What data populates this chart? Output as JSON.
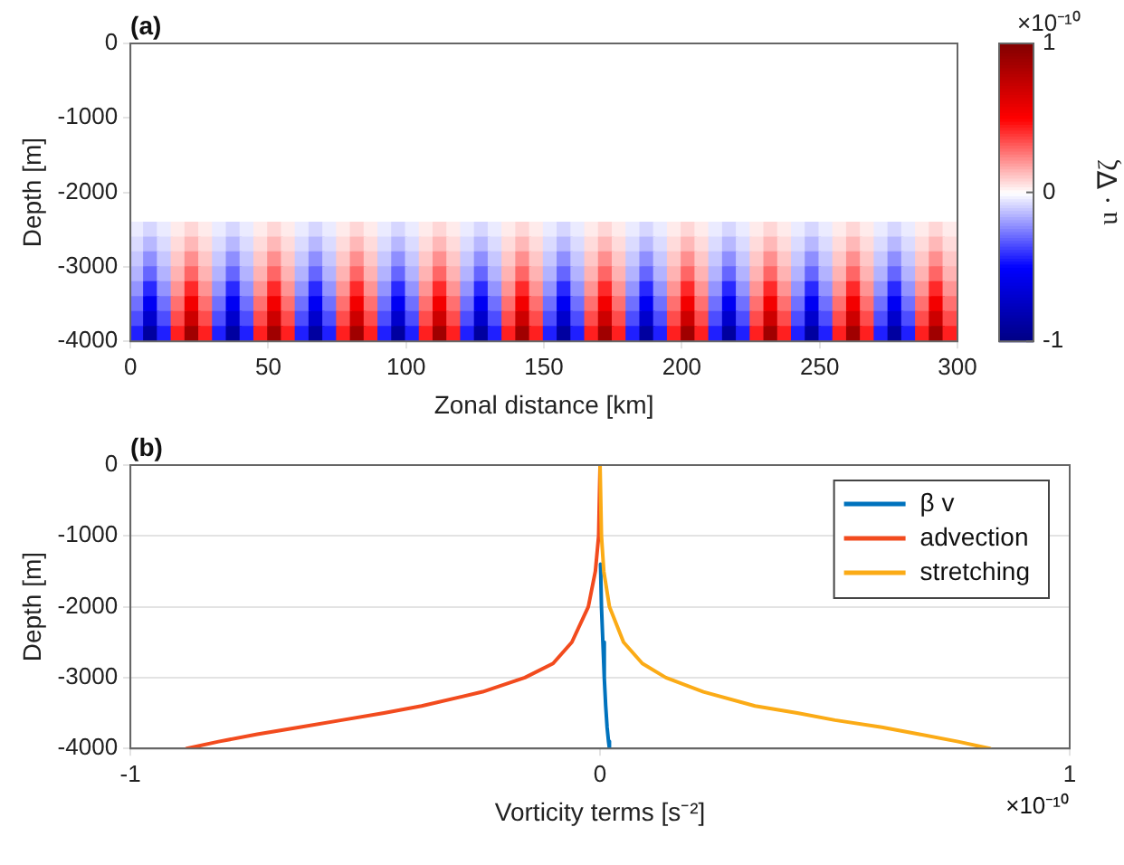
{
  "chart_data": [
    {
      "type": "scatter",
      "title": "(a)",
      "xlabel": "Zonal distance [km]",
      "ylabel": "Depth [m]",
      "clabel": "u · ∇ζ",
      "annotations": [
        "×10⁻¹⁰"
      ],
      "marker": "square",
      "xlim": [
        0,
        300
      ],
      "xticks": [
        0,
        50,
        100,
        150,
        200,
        250,
        300
      ],
      "ylim": [
        -4000,
        0
      ],
      "yticks": [
        -4000,
        -3000,
        -2000,
        -1000,
        0
      ],
      "clim": [
        -1,
        1
      ],
      "cticks": [
        -1,
        0,
        1
      ],
      "x": [
        2.5,
        7.5,
        12.5,
        17.5,
        22.5,
        27.5,
        32.5,
        37.5,
        42.5,
        47.5,
        52.5,
        57.5,
        62.5,
        67.5,
        72.5,
        77.5,
        82.5,
        87.5,
        92.5,
        97.5,
        102.5,
        107.5,
        112.5,
        117.5,
        122.5,
        127.5,
        132.5,
        137.5,
        142.5,
        147.5,
        152.5,
        157.5,
        162.5,
        167.5,
        172.5,
        177.5,
        182.5,
        187.5,
        192.5,
        197.5,
        202.5,
        207.5,
        212.5,
        217.5,
        222.5,
        227.5,
        232.5,
        237.5,
        242.5,
        247.5,
        252.5,
        257.5,
        262.5,
        267.5,
        272.5,
        277.5,
        282.5,
        287.5,
        292.5,
        297.5,
        2.5,
        7.5,
        12.5,
        17.5,
        22.5,
        27.5,
        32.5,
        37.5,
        42.5,
        47.5,
        52.5,
        57.5,
        62.5,
        67.5,
        72.5,
        77.5,
        82.5,
        87.5,
        92.5,
        97.5,
        102.5,
        107.5,
        112.5,
        117.5,
        122.5,
        127.5,
        132.5,
        137.5,
        142.5,
        147.5,
        152.5,
        157.5,
        162.5,
        167.5,
        172.5,
        177.5,
        182.5,
        187.5,
        192.5,
        197.5,
        202.5,
        207.5,
        212.5,
        217.5,
        222.5,
        227.5,
        232.5,
        237.5,
        242.5,
        247.5,
        252.5,
        257.5,
        262.5,
        267.5,
        272.5,
        277.5,
        282.5,
        287.5,
        292.5,
        297.5,
        2.5,
        7.5,
        12.5,
        17.5,
        22.5,
        27.5,
        32.5,
        37.5,
        42.5,
        47.5,
        52.5,
        57.5,
        62.5,
        67.5,
        72.5,
        77.5,
        82.5,
        87.5,
        92.5,
        97.5,
        102.5,
        107.5,
        112.5,
        117.5,
        122.5,
        127.5,
        132.5,
        137.5,
        142.5,
        147.5,
        152.5,
        157.5,
        162.5,
        167.5,
        172.5,
        177.5,
        182.5,
        187.5,
        192.5,
        197.5,
        202.5,
        207.5,
        212.5,
        217.5,
        222.5,
        227.5,
        232.5,
        237.5,
        242.5,
        247.5,
        252.5,
        257.5,
        262.5,
        267.5,
        272.5,
        277.5,
        282.5,
        287.5,
        292.5,
        297.5,
        2.5,
        7.5,
        12.5,
        17.5,
        22.5,
        27.5,
        32.5,
        37.5,
        42.5,
        47.5,
        52.5,
        57.5,
        62.5,
        67.5,
        72.5,
        77.5,
        82.5,
        87.5,
        92.5,
        97.5,
        102.5,
        107.5,
        112.5,
        117.5,
        122.5,
        127.5,
        132.5,
        137.5,
        142.5,
        147.5,
        152.5,
        157.5,
        162.5,
        167.5,
        172.5,
        177.5,
        182.5,
        187.5,
        192.5,
        197.5,
        202.5,
        207.5,
        212.5,
        217.5,
        222.5,
        227.5,
        232.5,
        237.5,
        242.5,
        247.5,
        252.5,
        257.5,
        262.5,
        267.5,
        272.5,
        277.5,
        282.5,
        287.5,
        292.5,
        297.5,
        2.5,
        7.5,
        12.5,
        17.5,
        22.5,
        27.5,
        32.5,
        37.5,
        42.5,
        47.5,
        52.5,
        57.5,
        62.5,
        67.5,
        72.5,
        77.5,
        82.5,
        87.5,
        92.5,
        97.5,
        102.5,
        107.5,
        112.5,
        117.5,
        122.5,
        127.5,
        132.5,
        137.5,
        142.5,
        147.5,
        152.5,
        157.5,
        162.5,
        167.5,
        172.5,
        177.5,
        182.5,
        187.5,
        192.5,
        197.5,
        202.5,
        207.5,
        212.5,
        217.5,
        222.5,
        227.5,
        232.5,
        237.5,
        242.5,
        247.5,
        252.5,
        257.5,
        262.5,
        267.5,
        272.5,
        277.5,
        282.5,
        287.5,
        292.5,
        297.5,
        2.5,
        7.5,
        12.5,
        17.5,
        22.5,
        27.5,
        32.5,
        37.5,
        42.5,
        47.5,
        52.5,
        57.5,
        62.5,
        67.5,
        72.5,
        77.5,
        82.5,
        87.5,
        92.5,
        97.5,
        102.5,
        107.5,
        112.5,
        117.5,
        122.5,
        127.5,
        132.5,
        137.5,
        142.5,
        147.5,
        152.5,
        157.5,
        162.5,
        167.5,
        172.5,
        177.5,
        182.5,
        187.5,
        192.5,
        197.5,
        202.5,
        207.5,
        212.5,
        217.5,
        222.5,
        227.5,
        232.5,
        237.5,
        242.5,
        247.5,
        252.5,
        257.5,
        262.5,
        267.5,
        272.5,
        277.5,
        282.5,
        287.5,
        292.5,
        297.5,
        2.5,
        7.5,
        12.5,
        17.5,
        22.5,
        27.5,
        32.5,
        37.5,
        42.5,
        47.5,
        52.5,
        57.5,
        62.5,
        67.5,
        72.5,
        77.5,
        82.5,
        87.5,
        92.5,
        97.5,
        102.5,
        107.5,
        112.5,
        117.5,
        122.5,
        127.5,
        132.5,
        137.5,
        142.5,
        147.5,
        152.5,
        157.5,
        162.5,
        167.5,
        172.5,
        177.5,
        182.5,
        187.5,
        192.5,
        197.5,
        202.5,
        207.5,
        212.5,
        217.5,
        222.5,
        227.5,
        232.5,
        237.5,
        242.5,
        247.5,
        252.5,
        257.5,
        262.5,
        267.5,
        272.5,
        277.5,
        282.5,
        287.5,
        292.5,
        297.5,
        2.5,
        7.5,
        12.5,
        17.5,
        22.5,
        27.5,
        32.5,
        37.5,
        42.5,
        47.5,
        52.5,
        57.5,
        62.5,
        67.5,
        72.5,
        77.5,
        82.5,
        87.5,
        92.5,
        97.5,
        102.5,
        107.5,
        112.5,
        117.5,
        122.5,
        127.5,
        132.5,
        137.5,
        142.5,
        147.5,
        152.5,
        157.5,
        162.5,
        167.5,
        172.5,
        177.5,
        182.5,
        187.5,
        192.5,
        197.5,
        202.5,
        207.5,
        212.5,
        217.5,
        222.5,
        227.5,
        232.5,
        237.5,
        242.5,
        247.5,
        252.5,
        257.5,
        262.5,
        267.5,
        272.5,
        277.5,
        282.5,
        287.5,
        292.5,
        297.5
      ],
      "values": [
        -2500,
        -2500,
        -2500,
        -2500,
        -2500,
        -2500,
        -2500,
        -2500,
        -2500,
        -2500,
        -2500,
        -2500,
        -2500,
        -2500,
        -2500,
        -2500,
        -2500,
        -2500,
        -2500,
        -2500,
        -2500,
        -2500,
        -2500,
        -2500,
        -2500,
        -2500,
        -2500,
        -2500,
        -2500,
        -2500,
        -2500,
        -2500,
        -2500,
        -2500,
        -2500,
        -2500,
        -2500,
        -2500,
        -2500,
        -2500,
        -2500,
        -2500,
        -2500,
        -2500,
        -2500,
        -2500,
        -2500,
        -2500,
        -2500,
        -2500,
        -2500,
        -2500,
        -2500,
        -2500,
        -2500,
        -2500,
        -2500,
        -2500,
        -2500,
        -2500,
        -2700,
        -2700,
        -2700,
        -2700,
        -2700,
        -2700,
        -2700,
        -2700,
        -2700,
        -2700,
        -2700,
        -2700,
        -2700,
        -2700,
        -2700,
        -2700,
        -2700,
        -2700,
        -2700,
        -2700,
        -2700,
        -2700,
        -2700,
        -2700,
        -2700,
        -2700,
        -2700,
        -2700,
        -2700,
        -2700,
        -2700,
        -2700,
        -2700,
        -2700,
        -2700,
        -2700,
        -2700,
        -2700,
        -2700,
        -2700,
        -2700,
        -2700,
        -2700,
        -2700,
        -2700,
        -2700,
        -2700,
        -2700,
        -2700,
        -2700,
        -2700,
        -2700,
        -2700,
        -2700,
        -2700,
        -2700,
        -2700,
        -2700,
        -2700,
        -2700,
        -2900,
        -2900,
        -2900,
        -2900,
        -2900,
        -2900,
        -2900,
        -2900,
        -2900,
        -2900,
        -2900,
        -2900,
        -2900,
        -2900,
        -2900,
        -2900,
        -2900,
        -2900,
        -2900,
        -2900,
        -2900,
        -2900,
        -2900,
        -2900,
        -2900,
        -2900,
        -2900,
        -2900,
        -2900,
        -2900,
        -2900,
        -2900,
        -2900,
        -2900,
        -2900,
        -2900,
        -2900,
        -2900,
        -2900,
        -2900,
        -2900,
        -2900,
        -2900,
        -2900,
        -2900,
        -2900,
        -2900,
        -2900,
        -2900,
        -2900,
        -2900,
        -2900,
        -2900,
        -2900,
        -2900,
        -2900,
        -2900,
        -2900,
        -2900,
        -2900,
        -3100,
        -3100,
        -3100,
        -3100,
        -3100,
        -3100,
        -3100,
        -3100,
        -3100,
        -3100,
        -3100,
        -3100,
        -3100,
        -3100,
        -3100,
        -3100,
        -3100,
        -3100,
        -3100,
        -3100,
        -3100,
        -3100,
        -3100,
        -3100,
        -3100,
        -3100,
        -3100,
        -3100,
        -3100,
        -3100,
        -3100,
        -3100,
        -3100,
        -3100,
        -3100,
        -3100,
        -3100,
        -3100,
        -3100,
        -3100,
        -3100,
        -3100,
        -3100,
        -3100,
        -3100,
        -3100,
        -3100,
        -3100,
        -3100,
        -3100,
        -3100,
        -3100,
        -3100,
        -3100,
        -3100,
        -3100,
        -3100,
        -3100,
        -3100,
        -3100,
        -3300,
        -3300,
        -3300,
        -3300,
        -3300,
        -3300,
        -3300,
        -3300,
        -3300,
        -3300,
        -3300,
        -3300,
        -3300,
        -3300,
        -3300,
        -3300,
        -3300,
        -3300,
        -3300,
        -3300,
        -3300,
        -3300,
        -3300,
        -3300,
        -3300,
        -3300,
        -3300,
        -3300,
        -3300,
        -3300,
        -3300,
        -3300,
        -3300,
        -3300,
        -3300,
        -3300,
        -3300,
        -3300,
        -3300,
        -3300,
        -3300,
        -3300,
        -3300,
        -3300,
        -3300,
        -3300,
        -3300,
        -3300,
        -3300,
        -3300,
        -3300,
        -3300,
        -3300,
        -3300,
        -3300,
        -3300,
        -3300,
        -3300,
        -3300,
        -3300,
        -3500,
        -3500,
        -3500,
        -3500,
        -3500,
        -3500,
        -3500,
        -3500,
        -3500,
        -3500,
        -3500,
        -3500,
        -3500,
        -3500,
        -3500,
        -3500,
        -3500,
        -3500,
        -3500,
        -3500,
        -3500,
        -3500,
        -3500,
        -3500,
        -3500,
        -3500,
        -3500,
        -3500,
        -3500,
        -3500,
        -3500,
        -3500,
        -3500,
        -3500,
        -3500,
        -3500,
        -3500,
        -3500,
        -3500,
        -3500,
        -3500,
        -3500,
        -3500,
        -3500,
        -3500,
        -3500,
        -3500,
        -3500,
        -3500,
        -3500,
        -3500,
        -3500,
        -3500,
        -3500,
        -3500,
        -3500,
        -3500,
        -3500,
        -3500,
        -3500,
        -3700,
        -3700,
        -3700,
        -3700,
        -3700,
        -3700,
        -3700,
        -3700,
        -3700,
        -3700,
        -3700,
        -3700,
        -3700,
        -3700,
        -3700,
        -3700,
        -3700,
        -3700,
        -3700,
        -3700,
        -3700,
        -3700,
        -3700,
        -3700,
        -3700,
        -3700,
        -3700,
        -3700,
        -3700,
        -3700,
        -3700,
        -3700,
        -3700,
        -3700,
        -3700,
        -3700,
        -3700,
        -3700,
        -3700,
        -3700,
        -3700,
        -3700,
        -3700,
        -3700,
        -3700,
        -3700,
        -3700,
        -3700,
        -3700,
        -3700,
        -3700,
        -3700,
        -3700,
        -3700,
        -3700,
        -3700,
        -3700,
        -3700,
        -3700,
        -3700,
        -3900,
        -3900,
        -3900,
        -3900,
        -3900,
        -3900,
        -3900,
        -3900,
        -3900,
        -3900,
        -3900,
        -3900,
        -3900,
        -3900,
        -3900,
        -3900,
        -3900,
        -3900,
        -3900,
        -3900,
        -3900,
        -3900,
        -3900,
        -3900,
        -3900,
        -3900,
        -3900,
        -3900,
        -3900,
        -3900,
        -3900,
        -3900,
        -3900,
        -3900,
        -3900,
        -3900,
        -3900,
        -3900,
        -3900,
        -3900,
        -3900,
        -3900,
        -3900,
        -3900,
        -3900,
        -3900,
        -3900,
        -3900,
        -3900,
        -3900,
        -3900,
        -3900,
        -3900,
        -3900,
        -3900,
        -3900,
        -3900,
        -3900,
        -3900,
        -3900
      ],
      "cvalues": [
        -0.04,
        -0.08,
        -0.04,
        0.04,
        0.08,
        0.04,
        -0.04,
        -0.08,
        -0.04,
        0.04,
        0.08,
        0.04,
        -0.04,
        -0.08,
        -0.04,
        0.04,
        0.08,
        0.04,
        -0.04,
        -0.08,
        -0.04,
        0.04,
        0.08,
        0.04,
        -0.04,
        -0.08,
        -0.04,
        0.04,
        0.08,
        0.04,
        -0.04,
        -0.08,
        -0.04,
        0.04,
        0.08,
        0.04,
        -0.04,
        -0.08,
        -0.04,
        0.04,
        0.08,
        0.04,
        -0.04,
        -0.08,
        -0.04,
        0.04,
        0.08,
        0.04,
        -0.04,
        -0.08,
        -0.04,
        0.04,
        0.08,
        0.04,
        -0.04,
        -0.08,
        -0.04,
        0.04,
        0.08,
        0.04,
        -0.07,
        -0.14,
        -0.07,
        0.07,
        0.14,
        0.07,
        -0.07,
        -0.14,
        -0.07,
        0.07,
        0.14,
        0.07,
        -0.07,
        -0.14,
        -0.07,
        0.07,
        0.14,
        0.07,
        -0.07,
        -0.14,
        -0.07,
        0.07,
        0.14,
        0.07,
        -0.07,
        -0.14,
        -0.07,
        0.07,
        0.14,
        0.07,
        -0.07,
        -0.14,
        -0.07,
        0.07,
        0.14,
        0.07,
        -0.07,
        -0.14,
        -0.07,
        0.07,
        0.14,
        0.07,
        -0.07,
        -0.14,
        -0.07,
        0.07,
        0.14,
        0.07,
        -0.07,
        -0.14,
        -0.07,
        0.07,
        0.14,
        0.07,
        -0.07,
        -0.14,
        -0.07,
        0.07,
        0.14,
        0.07,
        -0.11,
        -0.22,
        -0.11,
        0.11,
        0.22,
        0.11,
        -0.11,
        -0.22,
        -0.11,
        0.11,
        0.22,
        0.11,
        -0.11,
        -0.22,
        -0.11,
        0.11,
        0.22,
        0.11,
        -0.11,
        -0.22,
        -0.11,
        0.11,
        0.22,
        0.11,
        -0.11,
        -0.22,
        -0.11,
        0.11,
        0.22,
        0.11,
        -0.11,
        -0.22,
        -0.11,
        0.11,
        0.22,
        0.11,
        -0.11,
        -0.22,
        -0.11,
        0.11,
        0.22,
        0.11,
        -0.11,
        -0.22,
        -0.11,
        0.11,
        0.22,
        0.11,
        -0.11,
        -0.22,
        -0.11,
        0.11,
        0.22,
        0.11,
        -0.11,
        -0.22,
        -0.11,
        0.11,
        0.22,
        0.11,
        -0.15,
        -0.3,
        -0.15,
        0.15,
        0.3,
        0.15,
        -0.15,
        -0.3,
        -0.15,
        0.15,
        0.3,
        0.15,
        -0.15,
        -0.3,
        -0.15,
        0.15,
        0.3,
        0.15,
        -0.15,
        -0.3,
        -0.15,
        0.15,
        0.3,
        0.15,
        -0.15,
        -0.3,
        -0.15,
        0.15,
        0.3,
        0.15,
        -0.15,
        -0.3,
        -0.15,
        0.15,
        0.3,
        0.15,
        -0.15,
        -0.3,
        -0.15,
        0.15,
        0.3,
        0.15,
        -0.15,
        -0.3,
        -0.15,
        0.15,
        0.3,
        0.15,
        -0.15,
        -0.3,
        -0.15,
        0.15,
        0.3,
        0.15,
        -0.15,
        -0.3,
        -0.15,
        0.15,
        0.3,
        0.15,
        -0.21,
        -0.42,
        -0.21,
        0.21,
        0.42,
        0.21,
        -0.21,
        -0.42,
        -0.21,
        0.21,
        0.42,
        0.21,
        -0.21,
        -0.42,
        -0.21,
        0.21,
        0.42,
        0.21,
        -0.21,
        -0.42,
        -0.21,
        0.21,
        0.42,
        0.21,
        -0.21,
        -0.42,
        -0.21,
        0.21,
        0.42,
        0.21,
        -0.21,
        -0.42,
        -0.21,
        0.21,
        0.42,
        0.21,
        -0.21,
        -0.42,
        -0.21,
        0.21,
        0.42,
        0.21,
        -0.21,
        -0.42,
        -0.21,
        0.21,
        0.42,
        0.21,
        -0.21,
        -0.42,
        -0.21,
        0.21,
        0.42,
        0.21,
        -0.21,
        -0.42,
        -0.21,
        0.21,
        0.42,
        0.21,
        -0.28,
        -0.55,
        -0.28,
        0.28,
        0.55,
        0.28,
        -0.28,
        -0.55,
        -0.28,
        0.28,
        0.55,
        0.28,
        -0.28,
        -0.55,
        -0.28,
        0.28,
        0.55,
        0.28,
        -0.28,
        -0.55,
        -0.28,
        0.28,
        0.55,
        0.28,
        -0.28,
        -0.55,
        -0.28,
        0.28,
        0.55,
        0.28,
        -0.28,
        -0.55,
        -0.28,
        0.28,
        0.55,
        0.28,
        -0.28,
        -0.55,
        -0.28,
        0.28,
        0.55,
        0.28,
        -0.28,
        -0.55,
        -0.28,
        0.28,
        0.55,
        0.28,
        -0.28,
        -0.55,
        -0.28,
        0.28,
        0.55,
        0.28,
        -0.28,
        -0.55,
        -0.28,
        0.28,
        0.55,
        0.28,
        -0.35,
        -0.7,
        -0.35,
        0.35,
        0.7,
        0.35,
        -0.35,
        -0.7,
        -0.35,
        0.35,
        0.7,
        0.35,
        -0.35,
        -0.7,
        -0.35,
        0.35,
        0.7,
        0.35,
        -0.35,
        -0.7,
        -0.35,
        0.35,
        0.7,
        0.35,
        -0.35,
        -0.7,
        -0.35,
        0.35,
        0.7,
        0.35,
        -0.35,
        -0.7,
        -0.35,
        0.35,
        0.7,
        0.35,
        -0.35,
        -0.7,
        -0.35,
        0.35,
        0.7,
        0.35,
        -0.35,
        -0.7,
        -0.35,
        0.35,
        0.7,
        0.35,
        -0.35,
        -0.7,
        -0.35,
        0.35,
        0.7,
        0.35,
        -0.35,
        -0.7,
        -0.35,
        0.35,
        0.7,
        0.35,
        -0.44,
        -0.88,
        -0.44,
        0.44,
        0.88,
        0.44,
        -0.44,
        -0.88,
        -0.44,
        0.44,
        0.88,
        0.44,
        -0.44,
        -0.88,
        -0.44,
        0.44,
        0.88,
        0.44,
        -0.44,
        -0.88,
        -0.44,
        0.44,
        0.88,
        0.44,
        -0.44,
        -0.88,
        -0.44,
        0.44,
        0.88,
        0.44,
        -0.44,
        -0.88,
        -0.44,
        0.44,
        0.88,
        0.44,
        -0.44,
        -0.88,
        -0.44,
        0.44,
        0.88,
        0.44,
        -0.44,
        -0.88,
        -0.44,
        0.44,
        0.88,
        0.44,
        -0.44,
        -0.88,
        -0.44,
        0.44,
        0.88,
        0.44,
        -0.44,
        -0.88,
        -0.44,
        0.44,
        0.88,
        0.44
      ]
    },
    {
      "type": "line",
      "title": "(b)",
      "xlabel": "Vorticity terms [s⁻²]",
      "ylabel": "Depth [m]",
      "annotations": [
        "×10⁻¹⁰"
      ],
      "xlim": [
        -1,
        1
      ],
      "xticks": [
        -1,
        0,
        1
      ],
      "ylim": [
        -4000,
        0
      ],
      "yticks": [
        -4000,
        -3000,
        -2000,
        -1000,
        0
      ],
      "grid": "y",
      "legend": "top right",
      "line_style": "solid",
      "series": [
        {
          "name": "β v",
          "color": "#0072bd",
          "x": [
            0.001,
            0.003,
            0.006,
            0.009,
            0.012,
            0.015,
            0.018,
            0.02
          ],
          "values": [
            -1400,
            -2000,
            -2500,
            -3000,
            -3400,
            -3700,
            -3900,
            -4000
          ]
        },
        {
          "name": "advection",
          "color": "#f24b1e",
          "x": [
            0,
            -0.003,
            -0.01,
            -0.025,
            -0.06,
            -0.1,
            -0.16,
            -0.25,
            -0.38,
            -0.46,
            -0.55,
            -0.64,
            -0.73,
            -0.81,
            -0.88
          ],
          "values": [
            0,
            -1000,
            -1500,
            -2000,
            -2500,
            -2800,
            -3000,
            -3200,
            -3400,
            -3500,
            -3600,
            -3700,
            -3800,
            -3900,
            -4000
          ]
        },
        {
          "name": "stretching",
          "color": "#fbab16",
          "x": [
            0,
            0.003,
            0.008,
            0.02,
            0.05,
            0.09,
            0.14,
            0.22,
            0.33,
            0.42,
            0.5,
            0.6,
            0.68,
            0.76,
            0.83
          ],
          "values": [
            0,
            -1000,
            -1500,
            -2000,
            -2500,
            -2800,
            -3000,
            -3200,
            -3400,
            -3500,
            -3600,
            -3700,
            -3800,
            -3900,
            -4000
          ]
        }
      ]
    }
  ]
}
